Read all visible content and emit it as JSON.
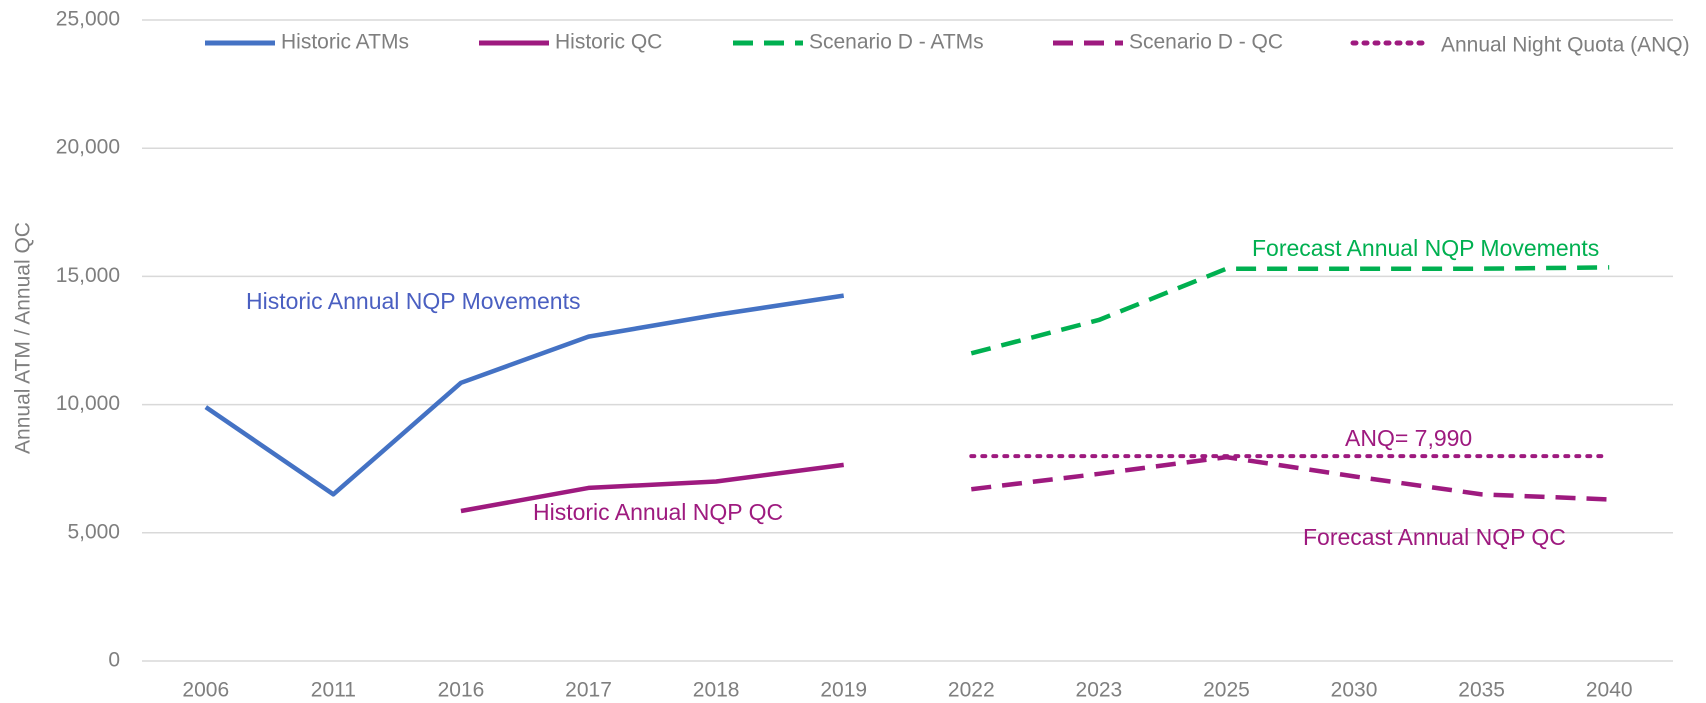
{
  "chart_data": {
    "type": "line",
    "y_label": "Annual ATM / Annual QC",
    "categories": [
      "2006",
      "2011",
      "2016",
      "2017",
      "2018",
      "2019",
      "2022",
      "2023",
      "2025",
      "2030",
      "2035",
      "2040"
    ],
    "series": [
      {
        "name": "Historic ATMs",
        "color": "#4472c4",
        "style": "solid",
        "values": [
          9900,
          6500,
          10850,
          12650,
          13500,
          14250,
          null,
          null,
          null,
          null,
          null,
          null
        ]
      },
      {
        "name": "Historic QC",
        "color": "#9e1a7f",
        "style": "solid",
        "values": [
          null,
          null,
          5850,
          6750,
          7000,
          7650,
          null,
          null,
          null,
          null,
          null,
          null
        ]
      },
      {
        "name": "Scenario D - ATMs",
        "color": "#00b050",
        "style": "dashed",
        "values": [
          null,
          null,
          null,
          null,
          null,
          null,
          12000,
          13300,
          15300,
          15300,
          15300,
          15350
        ]
      },
      {
        "name": "Scenario D - QC",
        "color": "#9e1a7f",
        "style": "dashed",
        "values": [
          null,
          null,
          null,
          null,
          null,
          null,
          6700,
          7300,
          7950,
          7200,
          6500,
          6300
        ]
      },
      {
        "name": "Annual Night Quota (ANQ)",
        "color": "#9e1a7f",
        "style": "dotted",
        "values": [
          null,
          null,
          null,
          null,
          null,
          null,
          7990,
          7990,
          7990,
          7990,
          7990,
          7990
        ]
      }
    ],
    "annotations": [
      {
        "text": "Historic Annual NQP Movements",
        "color": "#4a5fc1"
      },
      {
        "text": "Historic Annual NQP QC",
        "color": "#9e1a7f"
      },
      {
        "text": "Forecast Annual NQP Movements",
        "color": "#00b050"
      },
      {
        "text": "ANQ= 7,990",
        "color": "#9e1a7f"
      },
      {
        "text": "Forecast Annual NQP QC",
        "color": "#9e1a7f"
      }
    ],
    "ylim": [
      0,
      25000
    ],
    "yticks": [
      0,
      {
        "value": 5000,
        "label": "5,000"
      },
      {
        "value": 10000,
        "label": "10,000"
      },
      {
        "value": 15000,
        "label": "15,000"
      },
      {
        "value": 20000,
        "label": "20,000"
      },
      {
        "value": 25000,
        "label": "25,000"
      }
    ],
    "grid": true,
    "legend": "top"
  }
}
